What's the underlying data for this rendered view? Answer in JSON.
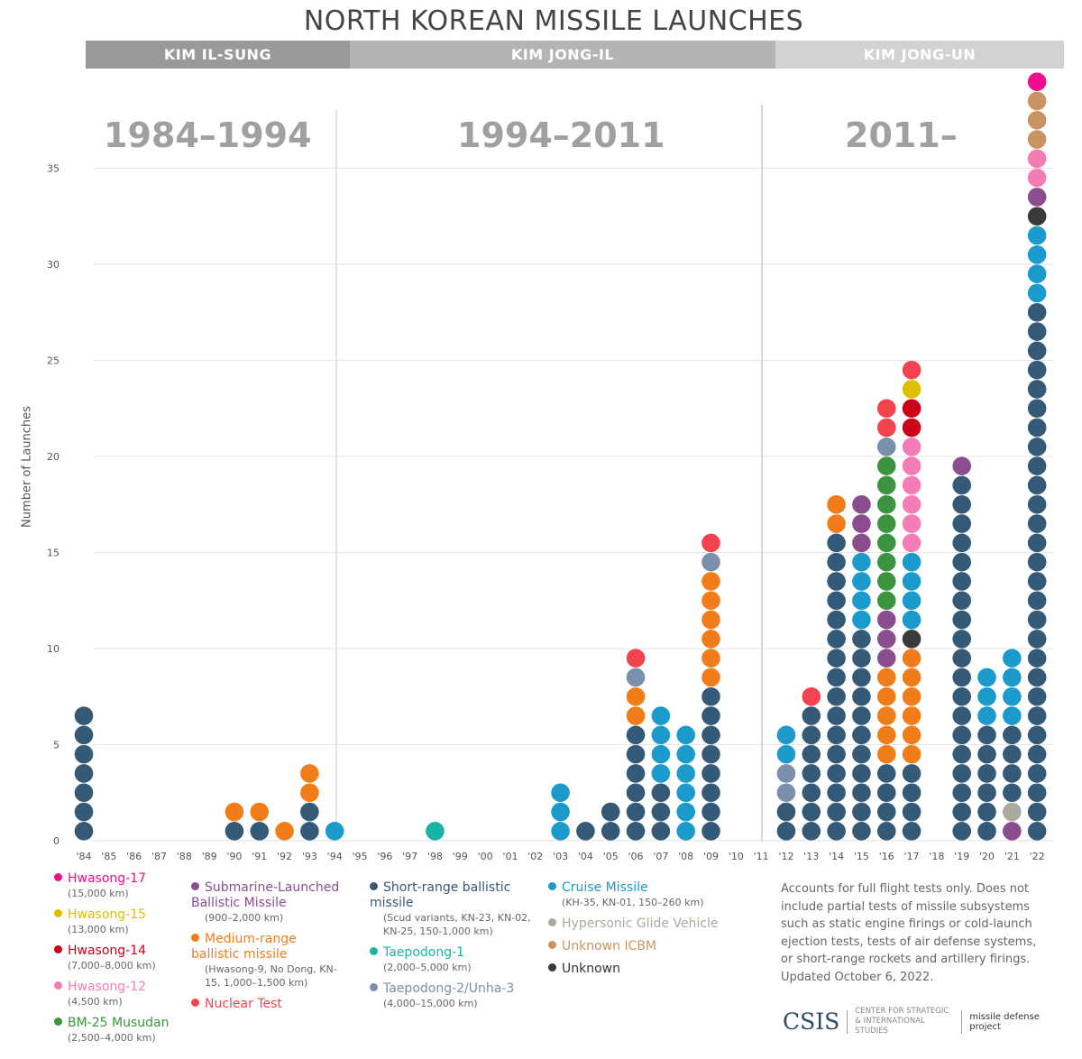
{
  "title": "NORTH KOREAN MISSILE LAUNCHES",
  "eras": [
    {
      "leader": "KIM IL-SUNG",
      "years": "1984–1994",
      "color": "#999999"
    },
    {
      "leader": "KIM JONG-IL",
      "years": "1994–2011",
      "color": "#b4b4b4"
    },
    {
      "leader": "KIM JONG-UN",
      "years": "2011–",
      "color": "#d2d2d2"
    }
  ],
  "legend": [
    {
      "key": "hs17",
      "name": "Hwasong-17",
      "sub": "(15,000 km)",
      "color": "#ef0f8a"
    },
    {
      "key": "hs15",
      "name": "Hwasong-15",
      "sub": "(13,000 km)",
      "color": "#dcc000"
    },
    {
      "key": "hs14",
      "name": "Hwasong-14",
      "sub": "(7,000–8,000 km)",
      "color": "#cc0019"
    },
    {
      "key": "hs12",
      "name": "Hwasong-12",
      "sub": "(4,500 km)",
      "color": "#f57db6"
    },
    {
      "key": "musudan",
      "name": "BM-25 Musudan",
      "sub": "(2,500–4,000 km)",
      "color": "#3d9440"
    },
    {
      "key": "slbm",
      "name": "Submarine-Launched Ballistic Missile",
      "sub": "(900–2,000 km)",
      "color": "#8a4e8e"
    },
    {
      "key": "mrbm",
      "name": "Medium-range ballistic missile",
      "sub": "(Hwasong-9, No Dong, KN-15, 1,000–1,500 km)",
      "color": "#f07c1a"
    },
    {
      "key": "nuclear",
      "name": "Nuclear Test",
      "sub": "",
      "color": "#f2434f"
    },
    {
      "key": "srbm",
      "name": "Short-range ballistic missile",
      "sub": "(Scud variants, KN-23, KN-02, KN-25, 150-1,000 km)",
      "color": "#345a77"
    },
    {
      "key": "td1",
      "name": "Taepodong-1",
      "sub": "(2,000–5,000 km)",
      "color": "#19b3a6"
    },
    {
      "key": "td2",
      "name": "Taepodong-2/Unha-3",
      "sub": "(4,000–15,000 km)",
      "color": "#7a8fac"
    },
    {
      "key": "cruise",
      "name": "Cruise Missile",
      "sub": "(KH-35, KN-01, 150–260 km)",
      "color": "#1a9bcb"
    },
    {
      "key": "hgv",
      "name": "Hypersonic Glide Vehicle",
      "sub": "",
      "color": "#aaa99e"
    },
    {
      "key": "icbm",
      "name": "Unknown ICBM",
      "sub": "",
      "color": "#c89462"
    },
    {
      "key": "unknown",
      "name": "Unknown",
      "sub": "",
      "color": "#3a3a3a"
    }
  ],
  "note": "Accounts for full flight tests only. Does not include partial tests of missile subsystems such as static engine firings or cold-launch ejection tests, tests of air defense systems, or short-range rockets and artillery firings. Updated October 6, 2022.",
  "logo": {
    "csis": "CSIS",
    "center": "CENTER FOR STRATEGIC & INTERNATIONAL STUDIES",
    "project": "missile defense project"
  },
  "chart_data": {
    "type": "stacked dot (bar)",
    "title": "NORTH KOREAN MISSILE LAUNCHES",
    "ylabel": "Number of Launches",
    "ylim": [
      0,
      40
    ],
    "yticks": [
      0,
      5,
      10,
      15,
      20,
      25,
      30,
      35
    ],
    "grid": true,
    "categories": [
      "'84",
      "'85",
      "'86",
      "'87",
      "'88",
      "'89",
      "'90",
      "'91",
      "'92",
      "'93",
      "'94",
      "'95",
      "'96",
      "'97",
      "'98",
      "'99",
      "'00",
      "'01",
      "'02",
      "'03",
      "'04",
      "'05",
      "'06",
      "'07",
      "'08",
      "'09",
      "'10",
      "'11",
      "'12",
      "'13",
      "'14",
      "'15",
      "'16",
      "'17",
      "'18",
      "'19",
      "'20",
      "'21",
      "'22"
    ],
    "stacks": {
      "'84": [
        [
          "srbm",
          7
        ]
      ],
      "'90": [
        [
          "srbm",
          1
        ],
        [
          "mrbm",
          1
        ]
      ],
      "'91": [
        [
          "srbm",
          1
        ],
        [
          "mrbm",
          1
        ]
      ],
      "'92": [
        [
          "mrbm",
          1
        ]
      ],
      "'93": [
        [
          "srbm",
          2
        ],
        [
          "mrbm",
          2
        ]
      ],
      "'94": [
        [
          "cruise",
          1
        ]
      ],
      "'98": [
        [
          "td1",
          1
        ]
      ],
      "'03": [
        [
          "cruise",
          3
        ]
      ],
      "'04": [
        [
          "srbm",
          1
        ]
      ],
      "'05": [
        [
          "srbm",
          2
        ]
      ],
      "'06": [
        [
          "srbm",
          6
        ],
        [
          "mrbm",
          2
        ],
        [
          "td2",
          1
        ],
        [
          "nuclear",
          1
        ]
      ],
      "'07": [
        [
          "srbm",
          3
        ],
        [
          "cruise",
          4
        ]
      ],
      "'08": [
        [
          "cruise",
          6
        ]
      ],
      "'09": [
        [
          "srbm",
          8
        ],
        [
          "mrbm",
          6
        ],
        [
          "td2",
          1
        ],
        [
          "nuclear",
          1
        ]
      ],
      "'12": [
        [
          "srbm",
          2
        ],
        [
          "td2",
          2
        ],
        [
          "cruise",
          2
        ]
      ],
      "'13": [
        [
          "srbm",
          7
        ],
        [
          "nuclear",
          1
        ]
      ],
      "'14": [
        [
          "srbm",
          16
        ],
        [
          "mrbm",
          2
        ]
      ],
      "'15": [
        [
          "srbm",
          11
        ],
        [
          "cruise",
          4
        ],
        [
          "slbm",
          3
        ]
      ],
      "'16": [
        [
          "srbm",
          4
        ],
        [
          "mrbm",
          5
        ],
        [
          "slbm",
          3
        ],
        [
          "musudan",
          8
        ],
        [
          "td2",
          1
        ],
        [
          "nuclear",
          2
        ]
      ],
      "'17": [
        [
          "srbm",
          4
        ],
        [
          "mrbm",
          6
        ],
        [
          "unknown",
          1
        ],
        [
          "cruise",
          4
        ],
        [
          "hs12",
          6
        ],
        [
          "hs14",
          2
        ],
        [
          "hs15",
          1
        ],
        [
          "nuclear",
          1
        ]
      ],
      "'19": [
        [
          "srbm",
          19
        ],
        [
          "slbm",
          1
        ]
      ],
      "'20": [
        [
          "srbm",
          6
        ],
        [
          "cruise",
          3
        ]
      ],
      "'21": [
        [
          "slbm",
          1
        ],
        [
          "hgv",
          1
        ],
        [
          "srbm",
          4
        ],
        [
          "cruise",
          4
        ]
      ],
      "'22": [
        [
          "srbm",
          28
        ],
        [
          "cruise",
          4
        ],
        [
          "unknown",
          1
        ],
        [
          "slbm",
          1
        ],
        [
          "hs12",
          2
        ],
        [
          "icbm",
          3
        ],
        [
          "hs17",
          1
        ]
      ]
    }
  }
}
